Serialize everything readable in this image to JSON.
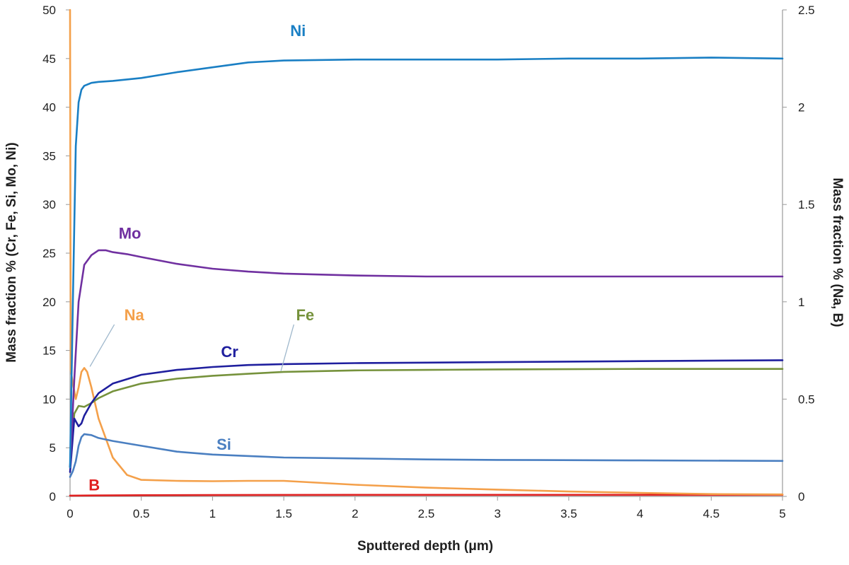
{
  "chart_data": {
    "type": "line",
    "title": "",
    "xlabel": "Sputtered depth (μm)",
    "ylabel": "Mass fraction % (Cr, Fe, Si, Mo, Ni)",
    "y2label": "Mass fraction % (Na, B)",
    "xlim": [
      0,
      5
    ],
    "ylim": [
      0,
      50
    ],
    "y2lim": [
      0,
      2.5
    ],
    "grid": false,
    "legend": "inline labels",
    "x_ticks": [
      "0",
      "0.5",
      "1",
      "1.5",
      "2",
      "2.5",
      "3",
      "3.5",
      "4",
      "4.5",
      "5"
    ],
    "y_ticks": [
      "0",
      "5",
      "10",
      "15",
      "20",
      "25",
      "30",
      "35",
      "40",
      "45",
      "50"
    ],
    "y2_ticks": [
      "0",
      "0.5",
      "1",
      "1.5",
      "2",
      "2.5"
    ],
    "series": [
      {
        "name": "Ni",
        "axis": "left",
        "color": "#1a7fc4",
        "x": [
          0.0,
          0.02,
          0.04,
          0.06,
          0.08,
          0.1,
          0.15,
          0.2,
          0.3,
          0.5,
          0.75,
          1.0,
          1.25,
          1.5,
          2.0,
          2.5,
          3.0,
          3.5,
          4.0,
          4.5,
          5.0
        ],
        "y": [
          3,
          20,
          36,
          40.5,
          41.8,
          42.2,
          42.5,
          42.6,
          42.7,
          43.0,
          43.6,
          44.1,
          44.6,
          44.8,
          44.9,
          44.9,
          44.9,
          45.0,
          45.0,
          45.1,
          45.0
        ]
      },
      {
        "name": "Mo",
        "axis": "left",
        "color": "#7030a0",
        "x": [
          0.0,
          0.03,
          0.06,
          0.1,
          0.15,
          0.2,
          0.25,
          0.3,
          0.4,
          0.5,
          0.75,
          1.0,
          1.25,
          1.5,
          2.0,
          2.5,
          3.0,
          4.0,
          5.0
        ],
        "y": [
          3,
          12,
          20,
          23.8,
          24.8,
          25.3,
          25.3,
          25.1,
          24.9,
          24.6,
          23.9,
          23.4,
          23.1,
          22.9,
          22.7,
          22.6,
          22.6,
          22.6,
          22.6
        ]
      },
      {
        "name": "Cr",
        "axis": "left",
        "color": "#1f1f9e",
        "x": [
          0.0,
          0.03,
          0.06,
          0.08,
          0.1,
          0.15,
          0.2,
          0.3,
          0.5,
          0.75,
          1.0,
          1.25,
          1.5,
          2.0,
          2.5,
          3.0,
          4.0,
          5.0
        ],
        "y": [
          2.5,
          8,
          7.2,
          7.5,
          8.3,
          9.6,
          10.6,
          11.6,
          12.5,
          13.0,
          13.3,
          13.5,
          13.6,
          13.7,
          13.75,
          13.8,
          13.9,
          14.0
        ]
      },
      {
        "name": "Fe",
        "axis": "left",
        "color": "#76923c",
        "x": [
          0.0,
          0.03,
          0.06,
          0.1,
          0.15,
          0.2,
          0.3,
          0.5,
          0.75,
          1.0,
          1.25,
          1.5,
          2.0,
          2.5,
          3.0,
          4.0,
          5.0
        ],
        "y": [
          3,
          8.5,
          9.3,
          9.2,
          9.6,
          10.1,
          10.8,
          11.6,
          12.1,
          12.4,
          12.6,
          12.8,
          12.95,
          13.0,
          13.05,
          13.1,
          13.1
        ]
      },
      {
        "name": "Si",
        "axis": "left",
        "color": "#4a7fc1",
        "x": [
          0.0,
          0.02,
          0.04,
          0.06,
          0.08,
          0.1,
          0.15,
          0.2,
          0.3,
          0.5,
          0.75,
          1.0,
          1.5,
          2.0,
          2.5,
          3.0,
          4.0,
          5.0
        ],
        "y": [
          2.0,
          2.6,
          3.6,
          5.2,
          6.1,
          6.4,
          6.3,
          6.0,
          5.7,
          5.2,
          4.6,
          4.3,
          4.0,
          3.9,
          3.8,
          3.75,
          3.7,
          3.65
        ]
      },
      {
        "name": "Na",
        "axis": "right",
        "color": "#f4a04a",
        "x": [
          0.0,
          0.005,
          0.02,
          0.04,
          0.06,
          0.08,
          0.1,
          0.12,
          0.15,
          0.2,
          0.3,
          0.4,
          0.5,
          0.75,
          1.0,
          1.25,
          1.5,
          2.0,
          2.5,
          3.0,
          3.5,
          4.0,
          4.5,
          5.0
        ],
        "y": [
          2.5,
          0.65,
          0.58,
          0.5,
          0.56,
          0.64,
          0.66,
          0.64,
          0.56,
          0.4,
          0.2,
          0.11,
          0.085,
          0.08,
          0.078,
          0.08,
          0.08,
          0.06,
          0.045,
          0.035,
          0.025,
          0.018,
          0.012,
          0.01
        ]
      },
      {
        "name": "B",
        "axis": "right",
        "color": "#e02020",
        "x": [
          0.0,
          0.5,
          1.0,
          2.0,
          3.0,
          4.0,
          5.0
        ],
        "y": [
          0.004,
          0.006,
          0.007,
          0.008,
          0.008,
          0.008,
          0.008
        ]
      }
    ],
    "annotations": [
      {
        "text": "Ni",
        "series": "Ni",
        "x": 1.6,
        "y": 47.3
      },
      {
        "text": "Mo",
        "series": "Mo",
        "x": 0.42,
        "y": 26.5
      },
      {
        "text": "Na",
        "series": "Na",
        "x": 0.45,
        "y": 18.1
      },
      {
        "text": "Fe",
        "series": "Fe",
        "x": 1.65,
        "y": 18.1
      },
      {
        "text": "Cr",
        "series": "Cr",
        "x": 1.12,
        "y": 14.3
      },
      {
        "text": "Si",
        "series": "Si",
        "x": 1.08,
        "y": 4.8
      },
      {
        "text": "B",
        "series": "B",
        "x": 0.17,
        "y": 0.6
      }
    ]
  }
}
